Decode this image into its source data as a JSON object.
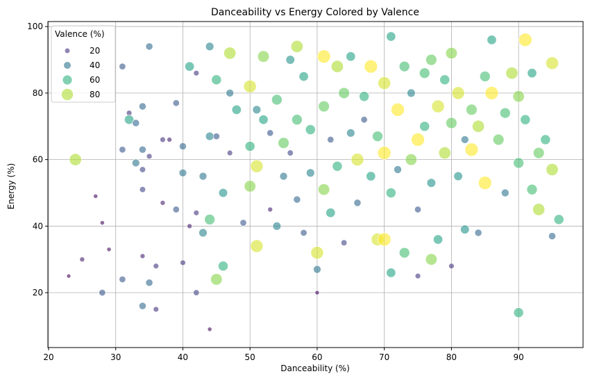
{
  "chart_data": {
    "type": "scatter",
    "title": "Danceability vs Energy Colored by Valence",
    "x_label": "Danceability (%)",
    "y_label": "Energy (%)",
    "legend_title": "Valence (%)",
    "legend_values": [
      20,
      40,
      60,
      80
    ],
    "legend_position": "upper-left",
    "colormap": "viridis",
    "grid": true,
    "xlim": [
      19.9,
      99.6
    ],
    "xticks": [
      20,
      30,
      40,
      50,
      60,
      70,
      80,
      90
    ],
    "ylim": [
      3.5,
      101.5
    ],
    "yticks": [
      20,
      40,
      60,
      80,
      100
    ],
    "x": [
      23,
      24,
      25,
      27,
      28,
      28,
      29,
      31,
      31,
      31,
      32,
      32,
      33,
      33,
      34,
      34,
      34,
      34,
      34,
      34,
      35,
      35,
      35,
      36,
      36,
      37,
      37,
      38,
      39,
      39,
      40,
      40,
      40,
      41,
      41,
      42,
      42,
      42,
      43,
      43,
      44,
      44,
      44,
      44,
      45,
      45,
      45,
      46,
      46,
      47,
      47,
      47,
      48,
      49,
      50,
      50,
      50,
      51,
      51,
      51,
      52,
      52,
      53,
      53,
      54,
      54,
      55,
      55,
      56,
      56,
      57,
      57,
      57,
      58,
      58,
      59,
      59,
      60,
      60,
      60,
      61,
      61,
      61,
      62,
      62,
      63,
      63,
      64,
      64,
      65,
      65,
      66,
      66,
      67,
      67,
      68,
      68,
      69,
      69,
      70,
      70,
      70,
      71,
      71,
      71,
      72,
      72,
      73,
      73,
      74,
      74,
      75,
      75,
      75,
      76,
      76,
      77,
      77,
      77,
      78,
      78,
      79,
      79,
      80,
      80,
      80,
      81,
      81,
      82,
      82,
      83,
      83,
      84,
      84,
      85,
      85,
      86,
      86,
      87,
      88,
      88,
      89,
      90,
      90,
      90,
      91,
      91,
      92,
      92,
      93,
      93,
      94,
      95,
      95,
      95,
      96
    ],
    "y": [
      25,
      60,
      30,
      49,
      41,
      20,
      33,
      88,
      63,
      24,
      74,
      72,
      71,
      59,
      76,
      63,
      57,
      51,
      31,
      16,
      94,
      23,
      61,
      28,
      15,
      66,
      47,
      66,
      77,
      45,
      64,
      56,
      29,
      40,
      88,
      86,
      44,
      20,
      55,
      38,
      94,
      67,
      9,
      42,
      84,
      24,
      67,
      50,
      28,
      92,
      80,
      62,
      75,
      41,
      82,
      64,
      52,
      34,
      58,
      75,
      91,
      72,
      68,
      45,
      78,
      40,
      55,
      65,
      90,
      62,
      94,
      72,
      48,
      85,
      38,
      69,
      56,
      20,
      32,
      27,
      91,
      76,
      51,
      66,
      44,
      88,
      58,
      80,
      35,
      91,
      68,
      60,
      47,
      79,
      72,
      55,
      88,
      36,
      67,
      36,
      62,
      83,
      97,
      50,
      26,
      75,
      57,
      88,
      32,
      60,
      80,
      66,
      45,
      25,
      86,
      70,
      30,
      53,
      90,
      76,
      36,
      62,
      84,
      28,
      71,
      92,
      55,
      80,
      66,
      39,
      75,
      63,
      70,
      38,
      85,
      53,
      96,
      80,
      66,
      50,
      74,
      86,
      14,
      59,
      79,
      96,
      72,
      86,
      51,
      45,
      62,
      66,
      89,
      57,
      37,
      42
    ],
    "valence": [
      8,
      80,
      15,
      10,
      10,
      30,
      10,
      30,
      30,
      30,
      20,
      55,
      35,
      40,
      35,
      35,
      25,
      25,
      15,
      35,
      35,
      35,
      20,
      20,
      20,
      20,
      15,
      15,
      30,
      30,
      35,
      40,
      20,
      15,
      55,
      20,
      20,
      25,
      40,
      45,
      45,
      45,
      10,
      65,
      60,
      75,
      30,
      50,
      60,
      80,
      40,
      20,
      55,
      30,
      85,
      60,
      75,
      85,
      85,
      45,
      75,
      55,
      30,
      15,
      65,
      45,
      40,
      70,
      50,
      25,
      80,
      65,
      35,
      55,
      30,
      60,
      45,
      10,
      85,
      40,
      90,
      70,
      75,
      30,
      55,
      80,
      60,
      70,
      25,
      55,
      45,
      85,
      35,
      60,
      30,
      55,
      90,
      85,
      65,
      90,
      90,
      85,
      55,
      60,
      55,
      90,
      40,
      65,
      65,
      75,
      45,
      90,
      30,
      20,
      65,
      60,
      75,
      50,
      70,
      85,
      55,
      80,
      60,
      20,
      70,
      75,
      50,
      85,
      40,
      50,
      70,
      90,
      80,
      35,
      65,
      90,
      55,
      90,
      70,
      40,
      65,
      80,
      60,
      65,
      75,
      90,
      60,
      55,
      65,
      80,
      70,
      60,
      85,
      80,
      35,
      60
    ]
  }
}
